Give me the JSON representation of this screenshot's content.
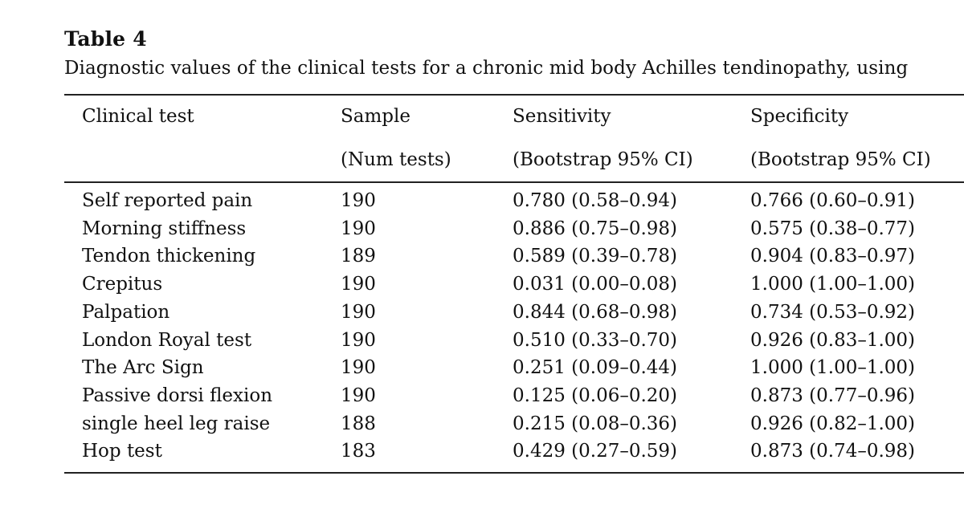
{
  "table": {
    "label": "Table 4",
    "caption": "Diagnostic values of the clinical tests for a chronic mid body Achilles tendinopathy, using",
    "headers": [
      {
        "line1": "Clinical test",
        "line2": ""
      },
      {
        "line1": "Sample",
        "line2": "(Num tests)"
      },
      {
        "line1": "Sensitivity",
        "line2": "(Bootstrap 95% CI)"
      },
      {
        "line1": "Specificity",
        "line2": "(Bootstrap 95% CI)"
      }
    ],
    "rows": [
      {
        "test": "Self reported pain",
        "sample": "190",
        "sensitivity": "0.780 (0.58–0.94)",
        "specificity": "0.766 (0.60–0.91)"
      },
      {
        "test": "Morning stiffness",
        "sample": "190",
        "sensitivity": "0.886 (0.75–0.98)",
        "specificity": "0.575 (0.38–0.77)"
      },
      {
        "test": "Tendon thickening",
        "sample": "189",
        "sensitivity": "0.589 (0.39–0.78)",
        "specificity": "0.904 (0.83–0.97)"
      },
      {
        "test": "Crepitus",
        "sample": "190",
        "sensitivity": "0.031 (0.00–0.08)",
        "specificity": "1.000 (1.00–1.00)"
      },
      {
        "test": "Palpation",
        "sample": "190",
        "sensitivity": "0.844 (0.68–0.98)",
        "specificity": "0.734 (0.53–0.92)"
      },
      {
        "test": "London Royal test",
        "sample": "190",
        "sensitivity": "0.510 (0.33–0.70)",
        "specificity": "0.926 (0.83–1.00)"
      },
      {
        "test": "The Arc Sign",
        "sample": "190",
        "sensitivity": "0.251 (0.09–0.44)",
        "specificity": "1.000 (1.00–1.00)"
      },
      {
        "test": "Passive dorsi flexion",
        "sample": "190",
        "sensitivity": "0.125 (0.06–0.20)",
        "specificity": "0.873 (0.77–0.96)"
      },
      {
        "test": "single heel leg raise",
        "sample": "188",
        "sensitivity": "0.215 (0.08–0.36)",
        "specificity": "0.926 (0.82–1.00)"
      },
      {
        "test": "Hop test",
        "sample": "183",
        "sensitivity": "0.429 (0.27–0.59)",
        "specificity": "0.873 (0.74–0.98)"
      }
    ]
  }
}
